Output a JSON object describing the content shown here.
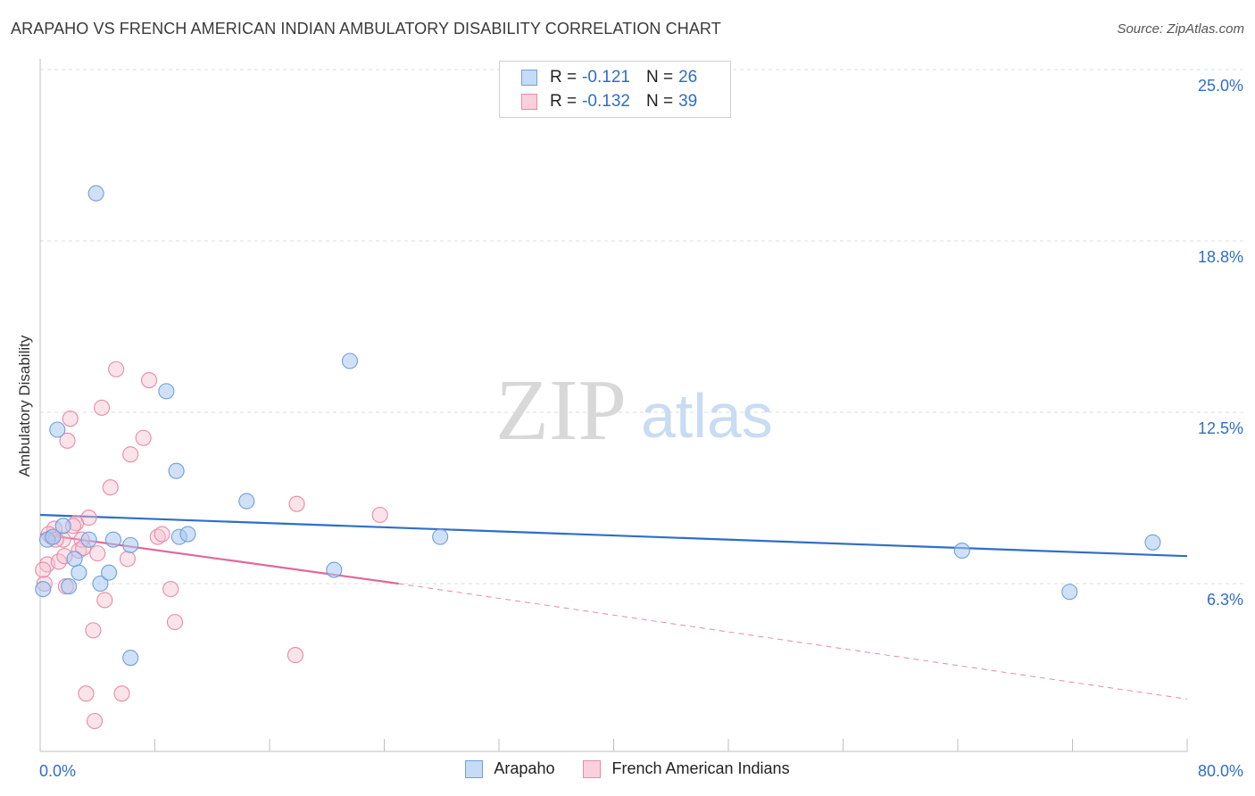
{
  "title": "ARAPAHO VS FRENCH AMERICAN INDIAN AMBULATORY DISABILITY CORRELATION CHART",
  "source": "Source: ZipAtlas.com",
  "watermark": {
    "zip": "ZIP",
    "atlas": "atlas"
  },
  "legend": {
    "rows": [
      {
        "r_label": "R =",
        "r_value": "-0.121",
        "n_label": "N =",
        "n_value": "26",
        "color": "#a9c8f0",
        "border": "#6f9fdc"
      },
      {
        "r_label": "R =",
        "r_value": "-0.132",
        "n_label": "N =",
        "n_value": "39",
        "color": "#f7c0d0",
        "border": "#e88aa8"
      }
    ]
  },
  "bottom_legend": [
    {
      "label": "Arapaho",
      "color": "#a9c8f0",
      "border": "#6f9fdc"
    },
    {
      "label": "French American Indians",
      "color": "#f7c0d0",
      "border": "#e88aa8"
    }
  ],
  "chart_data": {
    "type": "scatter",
    "title": "ARAPAHO VS FRENCH AMERICAN INDIAN AMBULATORY DISABILITY CORRELATION CHART",
    "xlabel": "",
    "ylabel": "Ambulatory Disability",
    "xlim": [
      0,
      80
    ],
    "ylim": [
      0,
      26
    ],
    "x_tick_labels": [
      "0.0%",
      "80.0%"
    ],
    "y_ticks": [
      6.3,
      12.5,
      18.8,
      25.0
    ],
    "y_tick_labels": [
      "6.3%",
      "12.5%",
      "18.8%",
      "25.0%"
    ],
    "grid": "horizontal dashed",
    "legend_position": "top-center",
    "colors": {
      "arapaho": "#2f6ec7",
      "french": "#e0679a"
    },
    "series": [
      {
        "name": "Arapaho",
        "x": [
          0.2,
          0.5,
          1.2,
          1.6,
          2.0,
          2.4,
          2.7,
          3.4,
          3.9,
          4.2,
          4.8,
          5.1,
          6.3,
          8.8,
          9.5,
          9.7,
          10.3,
          14.4,
          20.5,
          21.6,
          27.9,
          64.3,
          71.8,
          77.6,
          0.9,
          6.3
        ],
        "y": [
          6.1,
          7.9,
          11.9,
          8.4,
          6.2,
          7.2,
          6.7,
          7.9,
          20.5,
          6.3,
          6.7,
          7.9,
          7.7,
          13.3,
          10.4,
          8.0,
          8.1,
          9.3,
          6.8,
          14.4,
          8.0,
          7.5,
          6.0,
          7.8,
          8.0,
          3.6
        ],
        "trend": {
          "x0": 0,
          "y0": 8.8,
          "x1": 80,
          "y1": 7.3
        }
      },
      {
        "name": "French American Indians",
        "x": [
          0.3,
          0.5,
          0.8,
          1.0,
          1.3,
          1.6,
          1.8,
          1.9,
          2.1,
          2.5,
          2.7,
          2.9,
          3.2,
          3.4,
          3.7,
          3.8,
          4.0,
          4.3,
          4.5,
          4.9,
          5.3,
          5.7,
          6.1,
          6.3,
          7.2,
          7.6,
          8.2,
          8.5,
          9.1,
          9.4,
          0.6,
          1.1,
          1.7,
          2.3,
          3.0,
          17.8,
          17.9,
          23.7,
          0.2
        ],
        "y": [
          6.3,
          7.0,
          8.0,
          8.3,
          7.1,
          7.9,
          6.2,
          11.5,
          12.3,
          8.5,
          7.5,
          7.9,
          2.3,
          8.7,
          4.6,
          1.3,
          7.4,
          12.7,
          5.7,
          9.8,
          14.1,
          2.3,
          7.2,
          11.0,
          11.6,
          13.7,
          8.0,
          8.1,
          6.1,
          4.9,
          8.1,
          7.9,
          7.3,
          8.4,
          7.6,
          3.7,
          9.2,
          8.8,
          6.8
        ],
        "trend": {
          "x0": 0,
          "y0": 8.1,
          "x1": 25,
          "y1": 6.3,
          "dash_x1": 80,
          "dash_y1": 2.1
        }
      }
    ]
  }
}
